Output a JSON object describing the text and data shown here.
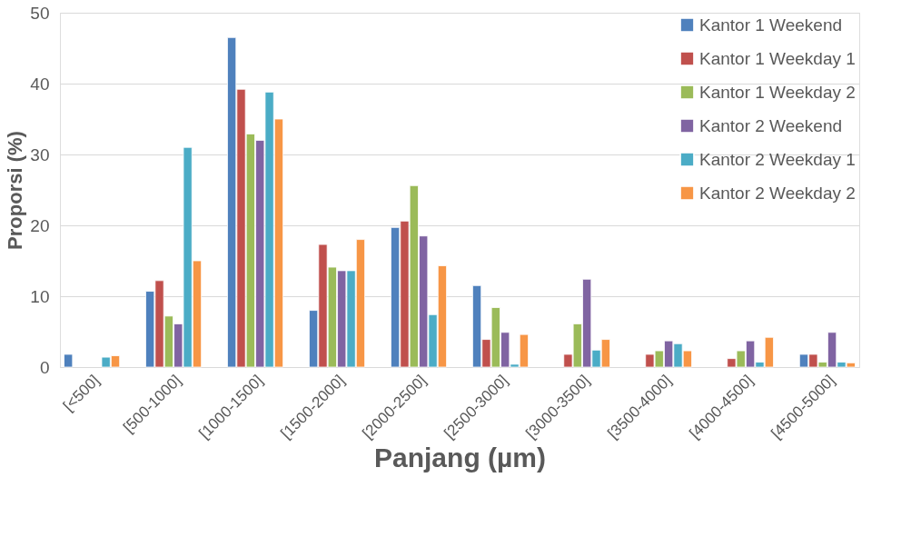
{
  "chart_data": {
    "type": "bar",
    "xlabel": "Panjang (µm)",
    "ylabel": "Proporsi (%)",
    "categories": [
      "[<500]",
      "[500-1000]",
      "[1000-1500]",
      "[1500-2000]",
      "[2000-2500]",
      "[2500-3000]",
      "[3000-3500]",
      "[3500-4000]",
      "[4000-4500]",
      "[4500-5000]"
    ],
    "series": [
      {
        "name": "Kantor 1 Weekend",
        "color": "#4f81bd",
        "values": [
          1.8,
          10.7,
          46.5,
          8.0,
          19.7,
          11.5,
          null,
          null,
          null,
          1.8
        ]
      },
      {
        "name": "Kantor 1 Weekday 1",
        "color": "#c0504d",
        "values": [
          null,
          12.2,
          39.2,
          17.3,
          20.6,
          3.9,
          1.8,
          1.8,
          1.2,
          1.8
        ]
      },
      {
        "name": "Kantor 1 Weekday 2",
        "color": "#9bbb59",
        "values": [
          null,
          7.2,
          32.9,
          14.1,
          25.6,
          8.4,
          6.1,
          2.3,
          2.3,
          0.7
        ]
      },
      {
        "name": "Kantor 2 Weekend",
        "color": "#8064a2",
        "values": [
          null,
          6.1,
          32.0,
          13.6,
          18.5,
          4.9,
          12.4,
          3.7,
          3.7,
          4.9
        ]
      },
      {
        "name": "Kantor 2 Weekday 1",
        "color": "#4bacc6",
        "values": [
          1.4,
          31.0,
          38.8,
          13.6,
          7.4,
          0.4,
          2.4,
          3.3,
          0.7,
          0.7
        ]
      },
      {
        "name": "Kantor 2 Weekday 2",
        "color": "#f79646",
        "values": [
          1.6,
          15.0,
          35.0,
          18.0,
          14.3,
          4.6,
          3.9,
          2.3,
          4.2,
          0.6
        ]
      }
    ],
    "ylim": [
      0,
      50
    ],
    "yticks": [
      0,
      10,
      20,
      30,
      40,
      50
    ],
    "grid": "y",
    "legend": "top right"
  }
}
